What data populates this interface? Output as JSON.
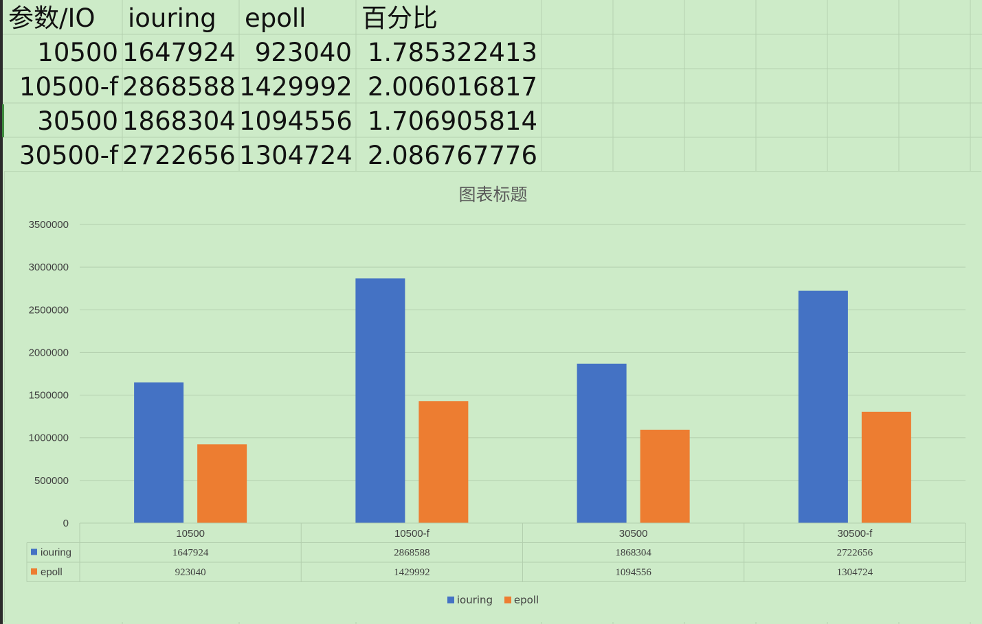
{
  "sheet": {
    "headers": [
      "参数/IO",
      "iouring",
      "epoll",
      "百分比"
    ],
    "rows": [
      [
        "10500",
        "1647924",
        "923040",
        "1.785322413"
      ],
      [
        "10500-f",
        "2868588",
        "1429992",
        "2.006016817"
      ],
      [
        "30500",
        "1868304",
        "1094556",
        "1.706905814"
      ],
      [
        "30500-f",
        "2722656",
        "1304724",
        "2.086767776"
      ]
    ]
  },
  "colors": {
    "iouring": "#4472c4",
    "epoll": "#ed7d31",
    "sheet_bg": "#cdebc8"
  },
  "chart_data": {
    "type": "bar",
    "title": "图表标题",
    "categories": [
      "10500",
      "10500-f",
      "30500",
      "30500-f"
    ],
    "series": [
      {
        "name": "iouring",
        "values": [
          1647924,
          2868588,
          1868304,
          2722656
        ]
      },
      {
        "name": "epoll",
        "values": [
          923040,
          1429992,
          1094556,
          1304724
        ]
      }
    ],
    "ylim": [
      0,
      3500000
    ],
    "yticks": [
      0,
      500000,
      1000000,
      1500000,
      2000000,
      2500000,
      3000000,
      3500000
    ],
    "xlabel": "",
    "ylabel": "",
    "grid": true,
    "legend": "bottom",
    "data_table": true
  }
}
